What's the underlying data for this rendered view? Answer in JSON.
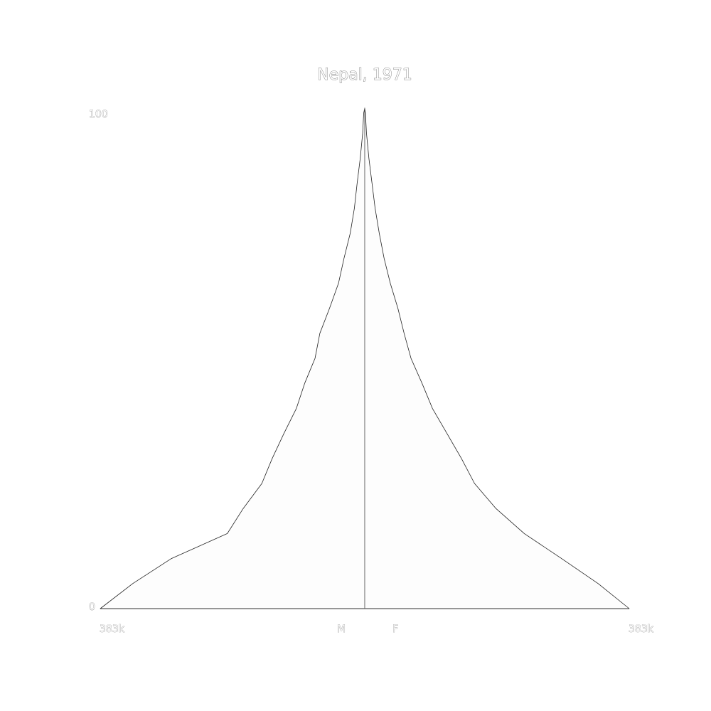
{
  "chart_data": {
    "type": "area",
    "title": "Nepal, 1971",
    "y_axis": {
      "label": "",
      "range": [
        0,
        100
      ],
      "tick_labels": [
        "100",
        "0"
      ]
    },
    "x_axis": {
      "left_label": "383k",
      "right_label": "383k",
      "range": [
        -383000,
        383000
      ],
      "center_labels": [
        "M",
        "F"
      ]
    },
    "colors": {
      "fill": "#fdfdfd",
      "stroke": "#222222",
      "text_fill": "#ffffff",
      "text_stroke": "#777777"
    },
    "series": [
      {
        "name": "M",
        "side": "left",
        "ages": [
          0,
          5,
          10,
          15,
          20,
          25,
          30,
          35,
          40,
          45,
          50,
          55,
          60,
          65,
          70,
          75,
          80,
          85,
          90,
          95,
          99,
          100
        ],
        "values": [
          383000,
          336000,
          280000,
          199000,
          176000,
          149000,
          134000,
          117000,
          99000,
          87000,
          72000,
          65000,
          51000,
          38000,
          30000,
          21000,
          15000,
          11000,
          6500,
          3000,
          1500,
          0
        ]
      },
      {
        "name": "F",
        "side": "right",
        "ages": [
          0,
          5,
          10,
          15,
          20,
          25,
          30,
          35,
          40,
          45,
          50,
          55,
          60,
          65,
          70,
          75,
          80,
          85,
          90,
          95,
          99,
          100
        ],
        "values": [
          383000,
          338000,
          285000,
          231000,
          190000,
          159000,
          140000,
          119000,
          98000,
          83000,
          67000,
          57000,
          48000,
          37000,
          28000,
          21000,
          15000,
          10500,
          6000,
          2500,
          1000,
          0
        ]
      }
    ]
  }
}
